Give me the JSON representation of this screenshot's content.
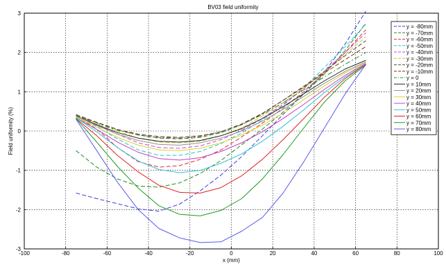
{
  "chart_data": {
    "type": "line",
    "title": "BV03 field uniformity",
    "xlabel": "x (mm)",
    "ylabel": "Field uniformity (%)",
    "xlim": [
      -100,
      100
    ],
    "ylim": [
      -3,
      3
    ],
    "xticks": [
      -100,
      -80,
      -60,
      -40,
      -20,
      0,
      20,
      40,
      60,
      80,
      100
    ],
    "yticks": [
      -3,
      -2,
      -1,
      0,
      1,
      2,
      3
    ],
    "xtick_labels": [
      "-100",
      "-80",
      "-60",
      "-40",
      "-20",
      "0",
      "20",
      "40",
      "60",
      "80",
      "100"
    ],
    "ytick_labels": [
      "-3",
      "-2",
      "-1",
      "0",
      "1",
      "2",
      "3"
    ],
    "grid": true,
    "legend_position": "right",
    "x": [
      -75,
      -65,
      -55,
      -45,
      -35,
      -25,
      -15,
      -5,
      5,
      15,
      25,
      35,
      45,
      55,
      65
    ],
    "series": [
      {
        "name": "y = -80mm",
        "color": "#3a3ae0",
        "dash": "dashed",
        "values": [
          -1.58,
          -1.72,
          -1.85,
          -1.98,
          -2.04,
          -1.86,
          -1.52,
          -1.12,
          -0.65,
          -0.12,
          0.42,
          0.95,
          1.5,
          2.22,
          3.05
        ]
      },
      {
        "name": "y = -70mm",
        "color": "#1e8a1e",
        "dash": "dashed",
        "values": [
          -0.5,
          -0.92,
          -1.22,
          -1.4,
          -1.43,
          -1.32,
          -1.08,
          -0.75,
          -0.35,
          0.05,
          0.48,
          0.95,
          1.45,
          2.05,
          2.75
        ]
      },
      {
        "name": "y = -60mm",
        "color": "#e03030",
        "dash": "dashed",
        "values": [
          0.38,
          0.05,
          -0.42,
          -0.78,
          -0.92,
          -0.88,
          -0.72,
          -0.48,
          -0.15,
          0.2,
          0.58,
          1.0,
          1.48,
          2.0,
          2.58
        ]
      },
      {
        "name": "y = -50mm",
        "color": "#20c8c8",
        "dash": "dashed",
        "values": [
          0.4,
          0.12,
          -0.2,
          -0.48,
          -0.62,
          -0.62,
          -0.52,
          -0.32,
          -0.05,
          0.28,
          0.65,
          1.1,
          1.62,
          2.15,
          2.72
        ]
      },
      {
        "name": "y = -40mm",
        "color": "#d040d0",
        "dash": "dashed",
        "values": [
          0.4,
          0.16,
          -0.08,
          -0.3,
          -0.42,
          -0.44,
          -0.38,
          -0.22,
          0.02,
          0.32,
          0.68,
          1.08,
          1.52,
          2.0,
          2.5
        ]
      },
      {
        "name": "y = -30mm",
        "color": "#c8c820",
        "dash": "dashed",
        "values": [
          0.4,
          0.2,
          0.0,
          -0.18,
          -0.28,
          -0.3,
          -0.26,
          -0.12,
          0.08,
          0.38,
          0.72,
          1.1,
          1.5,
          1.95,
          2.4
        ]
      },
      {
        "name": "y = -20mm",
        "color": "#505050",
        "dash": "dashed",
        "values": [
          0.42,
          0.22,
          0.04,
          -0.1,
          -0.18,
          -0.2,
          -0.16,
          -0.04,
          0.16,
          0.44,
          0.78,
          1.14,
          1.52,
          1.92,
          2.3
        ]
      },
      {
        "name": "y = -10mm",
        "color": "#7a3010",
        "dash": "dashed",
        "values": [
          0.4,
          0.22,
          0.04,
          -0.08,
          -0.14,
          -0.16,
          -0.12,
          -0.02,
          0.18,
          0.45,
          0.78,
          1.12,
          1.48,
          1.82,
          2.15
        ]
      },
      {
        "name": "y = 0",
        "color": "#2e8b2e",
        "dash": "dashdot",
        "values": [
          0.4,
          0.2,
          0.02,
          -0.1,
          -0.16,
          -0.18,
          -0.14,
          -0.02,
          0.16,
          0.42,
          0.72,
          1.05,
          1.38,
          1.7,
          2.0
        ]
      },
      {
        "name": "y = 10mm",
        "color": "#222222",
        "dash": "solid",
        "values": [
          0.38,
          0.16,
          -0.04,
          -0.18,
          -0.26,
          -0.28,
          -0.24,
          -0.12,
          0.06,
          0.32,
          0.62,
          0.95,
          1.28,
          1.58,
          1.8
        ]
      },
      {
        "name": "y = 20mm",
        "color": "#909090",
        "dash": "solid",
        "values": [
          0.38,
          0.14,
          -0.08,
          -0.24,
          -0.34,
          -0.36,
          -0.3,
          -0.18,
          0.0,
          0.25,
          0.55,
          0.88,
          1.22,
          1.52,
          1.76
        ]
      },
      {
        "name": "y = 30mm",
        "color": "#d8d030",
        "dash": "solid",
        "values": [
          0.36,
          0.1,
          -0.16,
          -0.36,
          -0.48,
          -0.5,
          -0.44,
          -0.3,
          -0.1,
          0.15,
          0.45,
          0.8,
          1.15,
          1.48,
          1.74
        ]
      },
      {
        "name": "y = 40mm",
        "color": "#c040c0",
        "dash": "solid",
        "values": [
          0.34,
          0.04,
          -0.28,
          -0.54,
          -0.7,
          -0.74,
          -0.68,
          -0.52,
          -0.3,
          -0.02,
          0.32,
          0.68,
          1.06,
          1.42,
          1.72
        ]
      },
      {
        "name": "y = 50mm",
        "color": "#30c0d0",
        "dash": "solid",
        "values": [
          0.34,
          -0.02,
          -0.42,
          -0.76,
          -0.98,
          -1.06,
          -1.0,
          -0.82,
          -0.58,
          -0.26,
          0.12,
          0.54,
          0.98,
          1.38,
          1.7
        ]
      },
      {
        "name": "y = 60mm",
        "color": "#e02020",
        "dash": "solid",
        "values": [
          0.32,
          -0.12,
          -0.62,
          -1.04,
          -1.38,
          -1.56,
          -1.58,
          -1.44,
          -1.14,
          -0.72,
          -0.22,
          0.32,
          0.86,
          1.34,
          1.7
        ]
      },
      {
        "name": "y = 70mm",
        "color": "#1a9a1a",
        "dash": "solid",
        "values": [
          0.32,
          -0.28,
          -0.9,
          -1.45,
          -1.9,
          -2.12,
          -2.16,
          -2.02,
          -1.72,
          -1.22,
          -0.6,
          0.08,
          0.74,
          1.28,
          1.68
        ]
      },
      {
        "name": "y = 80mm",
        "color": "#5858f0",
        "dash": "solid",
        "values": [
          0.3,
          -0.5,
          -1.3,
          -2.0,
          -2.48,
          -2.72,
          -2.84,
          -2.82,
          -2.55,
          -2.2,
          -1.58,
          -0.78,
          0.08,
          0.95,
          1.7
        ]
      }
    ]
  }
}
